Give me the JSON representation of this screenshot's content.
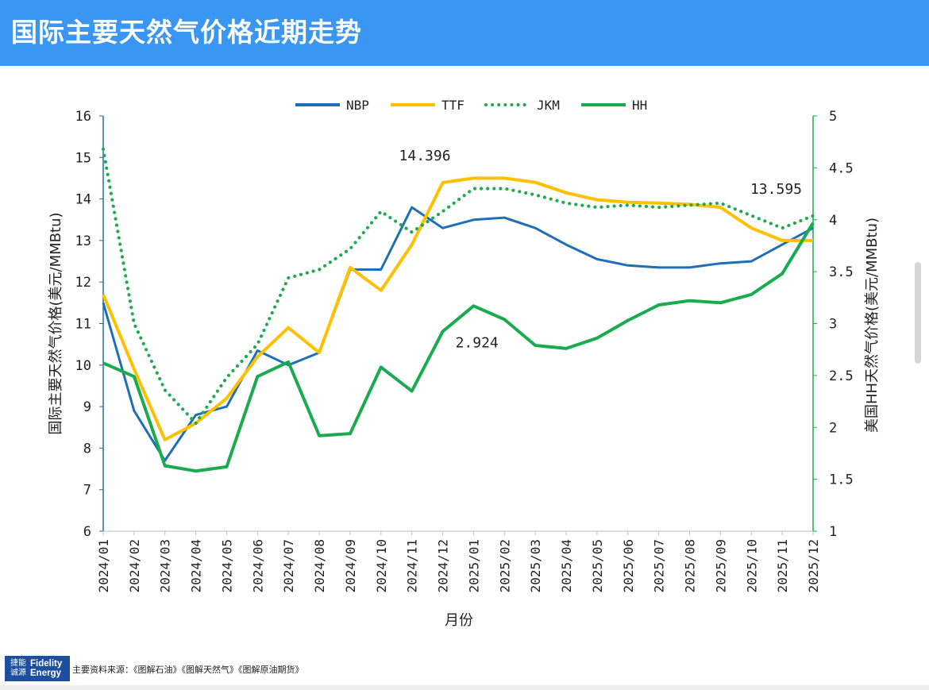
{
  "header": {
    "title": "国际主要天然气价格近期走势"
  },
  "footer": {
    "logo_cn_line1": "捷能",
    "logo_cn_line2": "诚源",
    "logo_en_line1": "Fidelity",
    "logo_en_line2": "Energy",
    "source_text": "主要资料来源：《图解石油》《图解天然气》《图解原油期货》"
  },
  "chart_data": {
    "type": "line",
    "x": [
      "2024/01",
      "2024/02",
      "2024/03",
      "2024/04",
      "2024/05",
      "2024/06",
      "2024/07",
      "2024/08",
      "2024/09",
      "2024/10",
      "2024/11",
      "2024/12",
      "2025/01",
      "2025/02",
      "2025/03",
      "2025/04",
      "2025/05",
      "2025/06",
      "2025/07",
      "2025/08",
      "2025/09",
      "2025/10",
      "2025/11",
      "2025/12"
    ],
    "xlabel": "月份",
    "ylabel_left": "国际主要天然气价格(美元/MMBtu)",
    "ylabel_right": "美国HH天然气价格(美元/MMBtu)",
    "ylim_left": [
      6,
      16
    ],
    "ylim_right": [
      1,
      5
    ],
    "yticks_left": [
      "6",
      "7",
      "8",
      "9",
      "10",
      "11",
      "12",
      "13",
      "14",
      "15",
      "16"
    ],
    "yticks_right": [
      "1",
      "1.5",
      "2",
      "2.5",
      "3",
      "3.5",
      "4",
      "4.5",
      "5"
    ],
    "legend_position": "top-center",
    "grid": false,
    "series": [
      {
        "name": "NBP",
        "axis": "left",
        "color": "#1f6fb8",
        "style": "solid",
        "values": [
          11.5,
          8.9,
          7.7,
          8.8,
          9.0,
          10.35,
          10.0,
          10.3,
          12.3,
          12.3,
          13.8,
          13.3,
          13.5,
          13.55,
          13.3,
          12.9,
          12.55,
          12.4,
          12.35,
          12.35,
          12.45,
          12.5,
          12.9,
          13.3
        ]
      },
      {
        "name": "TTF",
        "axis": "left",
        "color": "#ffc000",
        "style": "solid",
        "values": [
          11.7,
          9.9,
          8.2,
          8.6,
          9.2,
          10.2,
          10.9,
          10.3,
          12.35,
          11.8,
          12.9,
          14.396,
          14.5,
          14.5,
          14.4,
          14.15,
          13.98,
          13.92,
          13.9,
          13.87,
          13.8,
          13.3,
          13.0,
          13.0
        ]
      },
      {
        "name": "JKM",
        "axis": "left",
        "color": "#1faa4f",
        "style": "dotted",
        "values": [
          15.2,
          11.0,
          9.4,
          8.6,
          9.7,
          10.5,
          12.1,
          12.3,
          12.8,
          13.7,
          13.2,
          13.7,
          14.25,
          14.25,
          14.1,
          13.9,
          13.8,
          13.85,
          13.8,
          13.85,
          13.9,
          13.6,
          13.3,
          13.595
        ]
      },
      {
        "name": "HH",
        "axis": "right",
        "color": "#1aab4f",
        "style": "solid",
        "values": [
          2.62,
          2.49,
          1.63,
          1.58,
          1.62,
          2.49,
          2.63,
          1.92,
          1.94,
          2.58,
          2.35,
          2.924,
          3.17,
          3.04,
          2.79,
          2.76,
          2.86,
          3.03,
          3.18,
          3.22,
          3.2,
          3.28,
          3.48,
          3.97
        ]
      }
    ],
    "annotations": [
      {
        "text": "14.396",
        "series": "TTF",
        "index": 11
      },
      {
        "text": "13.595",
        "series": "JKM",
        "index": 23
      },
      {
        "text": "2.924",
        "series": "HH",
        "index": 11
      }
    ]
  }
}
